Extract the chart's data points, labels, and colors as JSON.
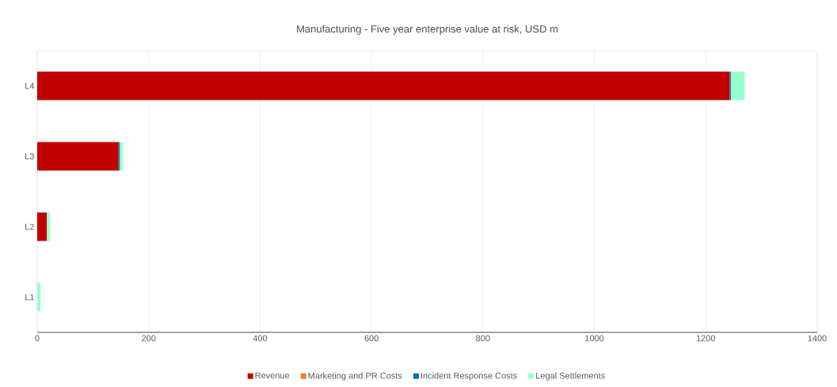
{
  "chart_data": {
    "type": "bar",
    "orientation": "horizontal",
    "stacked": true,
    "title": "Manufacturing - Five year enterprise value at risk, USD m",
    "categories": [
      "L4",
      "L3",
      "L2",
      "L1"
    ],
    "series": [
      {
        "name": "Revenue",
        "color": "#c00000",
        "values": [
          1243,
          146,
          17,
          0
        ]
      },
      {
        "name": "Marketing and PR Costs",
        "color": "#ed7d31",
        "values": [
          0,
          0,
          0,
          0
        ]
      },
      {
        "name": "Incident Response Costs",
        "color": "#0070c0",
        "values": [
          2,
          2,
          0,
          0
        ]
      },
      {
        "name": "Legal Settlements",
        "color": "#99ffcc",
        "values": [
          25,
          6,
          6,
          6
        ]
      }
    ],
    "xlim": [
      0,
      1400
    ],
    "xticks": [
      0,
      200,
      400,
      600,
      800,
      1000,
      1200,
      1400
    ],
    "grid": "x",
    "legend": "bottom"
  }
}
